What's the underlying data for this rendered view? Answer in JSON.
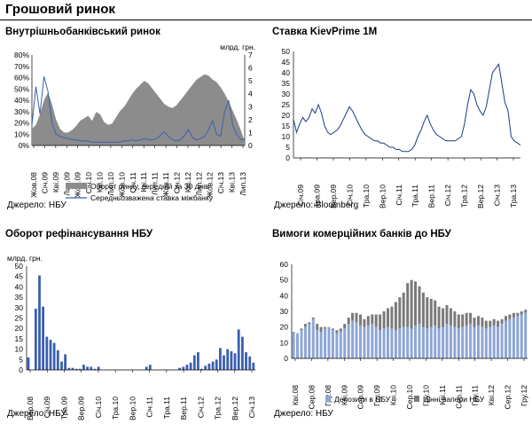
{
  "page_title": "Грошовий ринок",
  "accent_line": "#1a3a8a",
  "chart_data": [
    {
      "id": "interbank",
      "type": "area+line",
      "title": "Внутрішньобанківський ринок",
      "source": "Джерело: НБУ",
      "left_axis": {
        "ticks": [
          "0%",
          "10%",
          "20%",
          "30%",
          "40%",
          "50%",
          "60%",
          "70%",
          "80%"
        ],
        "range": [
          0,
          80
        ]
      },
      "right_axis": {
        "label": "млрд. грн.",
        "ticks": [
          "0",
          "1",
          "2",
          "3",
          "4",
          "5",
          "6",
          "7"
        ],
        "range": [
          0,
          7
        ]
      },
      "x_ticks": [
        "Жов.08",
        "Січ.09",
        "Кві.09",
        "Лип.09",
        "Жов.09",
        "Січ.10",
        "Кві.10",
        "Лип.10",
        "Жов.10",
        "Січ.11",
        "Кві.11",
        "Лип.11",
        "Жов.11",
        "Січ.12",
        "Кві.12",
        "Лип.12",
        "Жов.12",
        "Січ.13",
        "Кві.13",
        "Лип.13"
      ],
      "series": [
        {
          "name": "Оборот ринку, середній за 30 днів",
          "axis": "right",
          "kind": "area",
          "color": "#8c8c8c",
          "values": [
            1.3,
            1.6,
            2.4,
            3.5,
            4.1,
            3.2,
            2.0,
            1.3,
            1.0,
            1.0,
            1.2,
            1.5,
            1.9,
            2.1,
            2.3,
            1.9,
            2.6,
            2.4,
            1.8,
            1.6,
            1.7,
            2.2,
            2.7,
            3.0,
            3.5,
            4.0,
            4.4,
            4.7,
            5.0,
            4.8,
            4.4,
            4.0,
            3.6,
            3.2,
            3.0,
            2.9,
            3.1,
            3.5,
            3.9,
            4.3,
            4.7,
            5.1,
            5.3,
            5.5,
            5.4,
            5.1,
            4.9,
            4.5,
            4.0,
            3.4,
            2.7,
            2.0,
            1.2,
            0.3
          ]
        },
        {
          "name": "Середньозважена ставка міжбанку",
          "axis": "left",
          "kind": "line",
          "color": "#3a5fb0",
          "values": [
            18,
            52,
            28,
            61,
            48,
            20,
            10,
            8,
            7,
            6,
            5,
            5,
            4,
            4,
            4,
            3,
            3,
            3,
            3,
            3,
            3,
            3,
            3,
            4,
            4,
            5,
            4,
            5,
            6,
            5,
            5,
            6,
            9,
            12,
            8,
            5,
            4,
            5,
            9,
            14,
            7,
            5,
            6,
            8,
            14,
            22,
            10,
            8,
            30,
            40,
            18,
            10,
            5,
            6
          ]
        }
      ]
    },
    {
      "id": "kievprime",
      "type": "line",
      "title": "Ставка KievPrime 1M",
      "source": "Джерело: Bloomberg",
      "y_axis": {
        "ticks": [
          "0",
          "5",
          "10",
          "15",
          "20",
          "25",
          "30",
          "35",
          "40",
          "45",
          "50"
        ],
        "range": [
          0,
          50
        ]
      },
      "x_ticks": [
        "Січ.09",
        "Тра.09",
        "Вер.09",
        "Січ.10",
        "Тра.10",
        "Вер.10",
        "Січ.11",
        "Тра.11",
        "Вер.11",
        "Січ.12",
        "Тра.12",
        "Вер.12",
        "Січ.13",
        "Тра.13"
      ],
      "series": [
        {
          "name": "KievPrime 1M",
          "color": "#1a3a8a",
          "values": [
            18,
            12,
            16,
            19,
            17,
            19,
            23,
            21,
            25,
            21,
            15,
            12,
            11,
            12,
            13,
            15,
            18,
            21,
            24,
            22,
            19,
            16,
            13,
            11,
            10,
            9,
            8,
            8,
            7,
            7,
            6,
            5,
            5,
            4,
            4,
            3,
            3,
            3,
            4,
            6,
            10,
            13,
            17,
            20,
            16,
            13,
            11,
            10,
            9,
            8,
            8,
            8,
            8,
            9,
            10,
            16,
            25,
            32,
            30,
            25,
            22,
            20,
            24,
            32,
            40,
            42,
            44,
            35,
            26,
            22,
            10,
            8,
            7,
            6
          ]
        }
      ]
    },
    {
      "id": "refinancing",
      "type": "bar",
      "title": "Оборот рефінансування НБУ",
      "source": "Джерело: НБУ",
      "y_axis": {
        "label": "млрд. грн.",
        "ticks": [
          "0",
          "5",
          "10",
          "15",
          "20",
          "25",
          "30",
          "35",
          "40",
          "45",
          "50"
        ],
        "range": [
          0,
          50
        ]
      },
      "x_ticks": [
        "Вер.08",
        "Січ.09",
        "Тра.09",
        "Вер.09",
        "Січ.10",
        "Тра.10",
        "Вер.10",
        "Січ.11",
        "Тра.11",
        "Вер.11",
        "Січ.12",
        "Тра.12",
        "Вер.12",
        "Січ.13"
      ],
      "series": [
        {
          "name": "Оборот рефінансування",
          "color": "#3a5fb0",
          "values": [
            6,
            0,
            29.5,
            45.5,
            30.5,
            16,
            14.5,
            13,
            9.5,
            4,
            7.5,
            1,
            1,
            0.5,
            0.5,
            2.5,
            1.5,
            1.5,
            0.5,
            1.5,
            0,
            0,
            0,
            0,
            0,
            0,
            0,
            0,
            0,
            0,
            0,
            0,
            1.5,
            2.5,
            0,
            0,
            0,
            0,
            0,
            0,
            0,
            1,
            1.5,
            2.5,
            3.5,
            7,
            8.5,
            0.5,
            2,
            3,
            4,
            5,
            10.5,
            7,
            10,
            9,
            8,
            19.5,
            16,
            8.5,
            6.5,
            3.5
          ]
        }
      ]
    },
    {
      "id": "bank-requirements",
      "type": "stacked-bar",
      "title": "Вимоги комерційних банків до НБУ",
      "source": "Джерело: НБУ",
      "y_axis": {
        "ticks": [
          "0",
          "10",
          "20",
          "30",
          "40",
          "50",
          "60"
        ],
        "range": [
          0,
          60
        ]
      },
      "x_ticks": [
        "Кві.08",
        "Сер.08",
        "Гру.08",
        "Кві.09",
        "Сер.09",
        "Гру.09",
        "Кві.10",
        "Сер.10",
        "Гру.10",
        "Кві.11",
        "Сер.11",
        "Гру.11",
        "Кві.12",
        "Сер.12",
        "Гру.12"
      ],
      "series": [
        {
          "name": "Депозити в НБУ",
          "color": "#8da6d6",
          "values": [
            17,
            16,
            18,
            20,
            22,
            25,
            18,
            17,
            19,
            20,
            18,
            16,
            17,
            19,
            22,
            24,
            23,
            21,
            20,
            21,
            22,
            20,
            18,
            19,
            20,
            19,
            18,
            19,
            20,
            20,
            19,
            21,
            22,
            20,
            19,
            20,
            21,
            19,
            20,
            22,
            21,
            20,
            19,
            20,
            21,
            22,
            20,
            21,
            20,
            19,
            20,
            21,
            20,
            22,
            24,
            25,
            26,
            27,
            28,
            29
          ]
        },
        {
          "name": "Цінні папери НБУ",
          "color": "#7a7a7a",
          "values": [
            0,
            0,
            1,
            2,
            1,
            1,
            4,
            3,
            1,
            0,
            1,
            2,
            2,
            3,
            4,
            5,
            6,
            7,
            5,
            6,
            6,
            8,
            10,
            11,
            12,
            14,
            18,
            20,
            22,
            28,
            31,
            28,
            24,
            22,
            20,
            18,
            16,
            14,
            12,
            12,
            11,
            10,
            9,
            8,
            8,
            7,
            6,
            6,
            6,
            5,
            4,
            4,
            4,
            3,
            3,
            3,
            3,
            2,
            2,
            2
          ]
        }
      ]
    }
  ]
}
